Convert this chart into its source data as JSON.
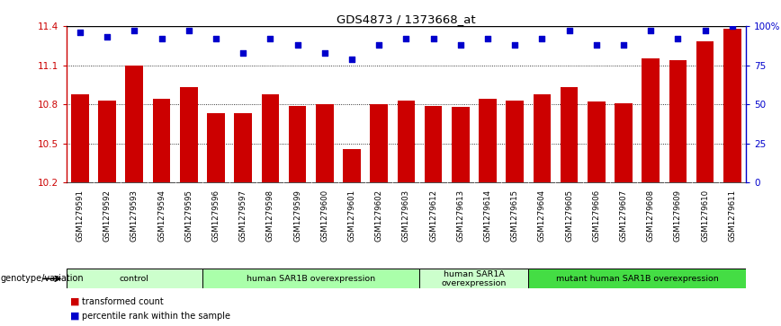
{
  "title": "GDS4873 / 1373668_at",
  "samples": [
    "GSM1279591",
    "GSM1279592",
    "GSM1279593",
    "GSM1279594",
    "GSM1279595",
    "GSM1279596",
    "GSM1279597",
    "GSM1279598",
    "GSM1279599",
    "GSM1279600",
    "GSM1279601",
    "GSM1279602",
    "GSM1279603",
    "GSM1279612",
    "GSM1279613",
    "GSM1279614",
    "GSM1279615",
    "GSM1279604",
    "GSM1279605",
    "GSM1279606",
    "GSM1279607",
    "GSM1279608",
    "GSM1279609",
    "GSM1279610",
    "GSM1279611"
  ],
  "bar_values": [
    10.88,
    10.83,
    11.1,
    10.84,
    10.93,
    10.73,
    10.73,
    10.88,
    10.79,
    10.8,
    10.46,
    10.8,
    10.83,
    10.79,
    10.78,
    10.84,
    10.83,
    10.88,
    10.93,
    10.82,
    10.81,
    11.15,
    11.14,
    11.28,
    11.38
  ],
  "blue_dots": [
    96,
    93,
    97,
    92,
    97,
    92,
    83,
    92,
    88,
    83,
    79,
    88,
    92,
    92,
    88,
    92,
    88,
    92,
    97,
    88,
    88,
    97,
    92,
    97,
    100
  ],
  "bar_color": "#cc0000",
  "dot_color": "#0000cc",
  "ymin": 10.2,
  "ymax": 11.4,
  "y2min": 0,
  "y2max": 100,
  "yticks": [
    10.2,
    10.5,
    10.8,
    11.1,
    11.4
  ],
  "y2ticks": [
    0,
    25,
    50,
    75,
    100
  ],
  "ytick_labels": [
    "10.2",
    "10.5",
    "10.8",
    "11.1",
    "11.4"
  ],
  "y2tick_labels": [
    "0",
    "25",
    "50",
    "75",
    "100%"
  ],
  "groups": [
    {
      "label": "control",
      "start": 0,
      "end": 5,
      "color": "#ccffcc"
    },
    {
      "label": "human SAR1B overexpression",
      "start": 5,
      "end": 13,
      "color": "#aaffaa"
    },
    {
      "label": "human SAR1A\noverexpression",
      "start": 13,
      "end": 17,
      "color": "#ccffcc"
    },
    {
      "label": "mutant human SAR1B overexpression",
      "start": 17,
      "end": 25,
      "color": "#44dd44"
    }
  ],
  "legend_items": [
    {
      "color": "#cc0000",
      "label": "transformed count"
    },
    {
      "color": "#0000cc",
      "label": "percentile rank within the sample"
    }
  ],
  "genotype_label": "genotype/variation",
  "bar_color_left": "#cc0000",
  "dot_color_blue": "#0000cc",
  "tick_bg_color": "#c8c8c8",
  "hline_values": [
    10.5,
    10.8,
    11.1
  ]
}
